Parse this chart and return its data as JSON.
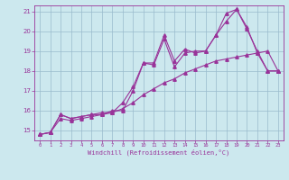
{
  "xlabel": "Windchill (Refroidissement éolien,°C)",
  "bg_color": "#cce8ee",
  "line_color": "#993399",
  "grid_color": "#99bbcc",
  "xlim": [
    -0.5,
    23.5
  ],
  "ylim": [
    14.5,
    21.3
  ],
  "xticks": [
    0,
    1,
    2,
    3,
    4,
    5,
    6,
    7,
    8,
    9,
    10,
    11,
    12,
    13,
    14,
    15,
    16,
    17,
    18,
    19,
    20,
    21,
    22,
    23
  ],
  "yticks": [
    15,
    16,
    17,
    18,
    19,
    20,
    21
  ],
  "series1_x": [
    0,
    1,
    2,
    3,
    4,
    5,
    6,
    7,
    8,
    9,
    10,
    11,
    12,
    13,
    14,
    15,
    16,
    17,
    18,
    19,
    20,
    21,
    22,
    23
  ],
  "series1_y": [
    14.8,
    14.9,
    15.8,
    15.6,
    15.7,
    15.8,
    15.9,
    15.9,
    16.4,
    17.2,
    18.4,
    18.3,
    19.6,
    18.2,
    18.9,
    19.0,
    19.0,
    19.8,
    20.9,
    21.1,
    20.2,
    18.9,
    18.0,
    18.0
  ],
  "series2_x": [
    0,
    1,
    2,
    3,
    4,
    5,
    6,
    7,
    8,
    9,
    10,
    11,
    12,
    13,
    14,
    15,
    16,
    17,
    18,
    19,
    20,
    21,
    22,
    23
  ],
  "series2_y": [
    14.8,
    14.9,
    15.8,
    15.6,
    15.7,
    15.8,
    15.8,
    16.0,
    16.0,
    17.0,
    18.4,
    18.4,
    19.8,
    18.5,
    19.1,
    18.9,
    19.0,
    19.8,
    20.5,
    21.1,
    20.1,
    19.0,
    18.0,
    18.0
  ],
  "series3_x": [
    0,
    1,
    2,
    3,
    4,
    5,
    6,
    7,
    8,
    9,
    10,
    11,
    12,
    13,
    14,
    15,
    16,
    17,
    18,
    19,
    20,
    21,
    22,
    23
  ],
  "series3_y": [
    14.8,
    14.9,
    15.6,
    15.5,
    15.6,
    15.7,
    15.8,
    15.9,
    16.1,
    16.4,
    16.8,
    17.1,
    17.4,
    17.6,
    17.9,
    18.1,
    18.3,
    18.5,
    18.6,
    18.7,
    18.8,
    18.9,
    19.0,
    18.0
  ]
}
